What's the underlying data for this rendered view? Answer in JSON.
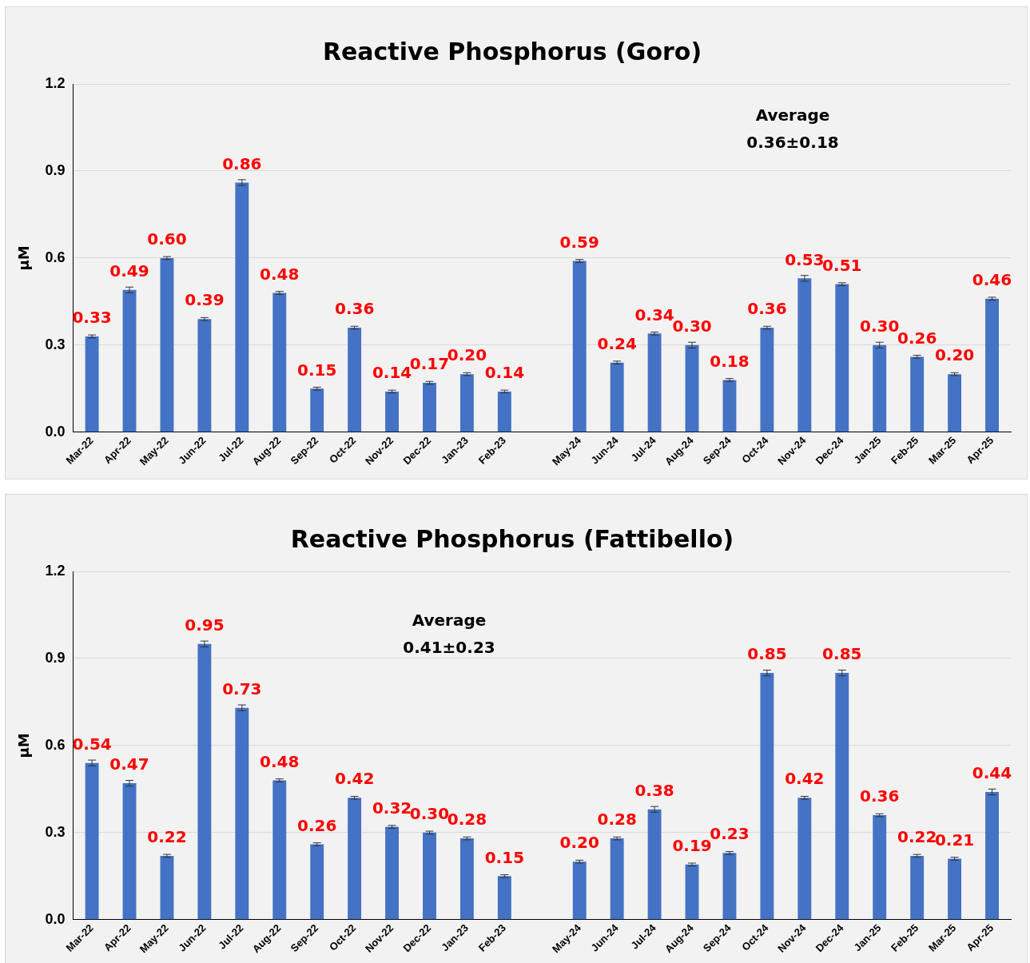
{
  "chart_data": [
    {
      "type": "bar",
      "title": "Reactive Phosphorus (Goro)",
      "ylabel": "µM",
      "categories": [
        "Mar-22",
        "Apr-22",
        "May-22",
        "Jun-22",
        "Jul-22",
        "Aug-22",
        "Sep-22",
        "Oct-22",
        "Nov-22",
        "Dec-22",
        "Jan-23",
        "Feb-23",
        null,
        "May-24",
        "Jun-24",
        "Jul-24",
        "Aug-24",
        "Sep-24",
        "Oct-24",
        "Nov-24",
        "Dec-24",
        "Jan-25",
        "Feb-25",
        "Mar-25",
        "Apr-25"
      ],
      "values": [
        0.33,
        0.49,
        0.6,
        0.39,
        0.86,
        0.48,
        0.15,
        0.36,
        0.14,
        0.17,
        0.2,
        0.14,
        null,
        0.59,
        0.24,
        0.34,
        0.3,
        0.18,
        0.36,
        0.53,
        0.51,
        0.3,
        0.26,
        0.2,
        0.46
      ],
      "errors": [
        0.005,
        0.01,
        0.005,
        0.005,
        0.01,
        0.005,
        0.005,
        0.005,
        0.005,
        0.005,
        0.005,
        0.005,
        null,
        0.005,
        0.005,
        0.005,
        0.01,
        0.005,
        0.005,
        0.01,
        0.005,
        0.01,
        0.005,
        0.005,
        0.005
      ],
      "value_labels": [
        "0.33",
        "0.49",
        "0.60",
        "0.39",
        "0.86",
        "0.48",
        "0.15",
        "0.36",
        "0.14",
        "0.17",
        "0.20",
        "0.14",
        null,
        "0.59",
        "0.24",
        "0.34",
        "0.30",
        "0.18",
        "0.36",
        "0.53",
        "0.51",
        "0.30",
        "0.26",
        "0.20",
        "0.46"
      ],
      "color": "#4472c4",
      "ylim": [
        0,
        1.2
      ],
      "yticks": [
        {
          "value": 0,
          "label": "0.0"
        },
        {
          "value": 0.3,
          "label": "0.3"
        },
        {
          "value": 0.6,
          "label": "0.6"
        },
        {
          "value": 0.9,
          "label": "0.9"
        },
        {
          "value": 1.2,
          "label": "1.2"
        }
      ],
      "grid": "y",
      "annotations": [
        "Average\n0.36±0.18"
      ]
    },
    {
      "type": "bar",
      "title": "Reactive Phosphorus (Fattibello)",
      "ylabel": "µM",
      "categories": [
        "Mar-22",
        "Apr-22",
        "May-22",
        "Jun-22",
        "Jul-22",
        "Aug-22",
        "Sep-22",
        "Oct-22",
        "Nov-22",
        "Dec-22",
        "Jan-23",
        "Feb-23",
        null,
        "May-24",
        "Jun-24",
        "Jul-24",
        "Aug-24",
        "Sep-24",
        "Oct-24",
        "Nov-24",
        "Dec-24",
        "Jan-25",
        "Feb-25",
        "Mar-25",
        "Apr-25"
      ],
      "values": [
        0.54,
        0.47,
        0.22,
        0.95,
        0.73,
        0.48,
        0.26,
        0.42,
        0.32,
        0.3,
        0.28,
        0.15,
        null,
        0.2,
        0.28,
        0.38,
        0.19,
        0.23,
        0.85,
        0.42,
        0.85,
        0.36,
        0.22,
        0.21,
        0.44
      ],
      "errors": [
        0.01,
        0.01,
        0.005,
        0.01,
        0.01,
        0.005,
        0.005,
        0.005,
        0.005,
        0.005,
        0.005,
        0.005,
        null,
        0.005,
        0.005,
        0.01,
        0.005,
        0.005,
        0.01,
        0.005,
        0.01,
        0.005,
        0.005,
        0.005,
        0.01
      ],
      "value_labels": [
        "0.54",
        "0.47",
        "0.22",
        "0.95",
        "0.73",
        "0.48",
        "0.26",
        "0.42",
        "0.32",
        "0.30",
        "0.28",
        "0.15",
        null,
        "0.20",
        "0.28",
        "0.38",
        "0.19",
        "0.23",
        "0.85",
        "0.42",
        "0.85",
        "0.36",
        "0.22",
        "0.21",
        "0.44"
      ],
      "color": "#4472c4",
      "ylim": [
        0,
        1.2
      ],
      "yticks": [
        {
          "value": 0,
          "label": "0.0"
        },
        {
          "value": 0.3,
          "label": "0.3"
        },
        {
          "value": 0.6,
          "label": "0.6"
        },
        {
          "value": 0.9,
          "label": "0.9"
        },
        {
          "value": 1.2,
          "label": "1.2"
        }
      ],
      "grid": "y",
      "annotations": [
        "Average\n0.41±0.23"
      ]
    }
  ]
}
